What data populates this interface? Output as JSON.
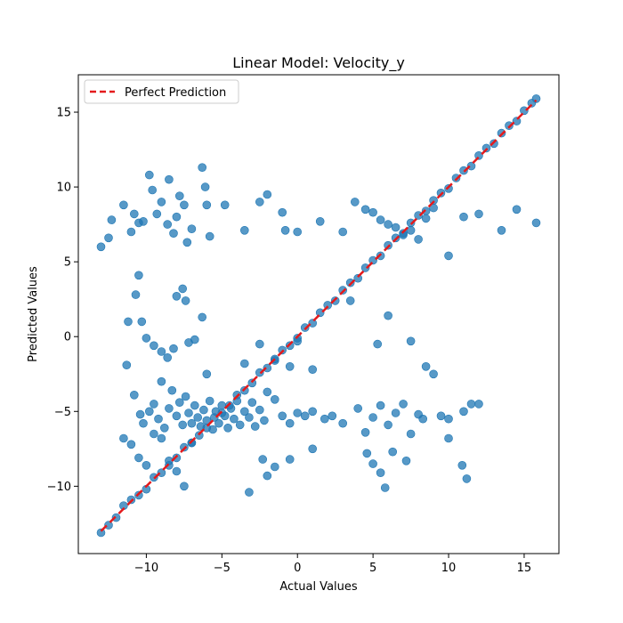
{
  "chart_data": {
    "type": "scatter",
    "title": "Linear Model: Velocity_y",
    "xlabel": "Actual Values",
    "ylabel": "Predicted Values",
    "xlim": [
      -14.5,
      17.3
    ],
    "ylim": [
      -14.5,
      17.5
    ],
    "xticks": [
      -10,
      -5,
      0,
      5,
      10,
      15
    ],
    "yticks": [
      -10,
      -5,
      0,
      5,
      10,
      15
    ],
    "xtick_labels": [
      "−10",
      "−5",
      "0",
      "5",
      "10",
      "15"
    ],
    "ytick_labels": [
      "−10",
      "−5",
      "0",
      "5",
      "10",
      "15"
    ],
    "grid": false,
    "legend": {
      "location": "upper-left",
      "entries": [
        "Perfect Prediction"
      ]
    },
    "colors": {
      "points": "#1f77b4",
      "reference_line": "#e41a1c"
    },
    "reference_line": {
      "name": "Perfect Prediction",
      "x": [
        -13,
        15.8
      ],
      "y": [
        -13,
        15.8
      ],
      "style": "dashed"
    },
    "series": [
      {
        "type": "scatter",
        "points": [
          [
            -13.0,
            -13.1
          ],
          [
            -12.5,
            -12.6
          ],
          [
            -12.0,
            -12.1
          ],
          [
            -11.5,
            -11.3
          ],
          [
            -11.0,
            -10.9
          ],
          [
            -10.5,
            -10.6
          ],
          [
            -10.0,
            -10.2
          ],
          [
            -9.5,
            -9.4
          ],
          [
            -9.0,
            -9.1
          ],
          [
            -8.5,
            -8.6
          ],
          [
            -8.0,
            -8.1
          ],
          [
            -7.5,
            -7.4
          ],
          [
            -7.0,
            -7.1
          ],
          [
            -6.5,
            -6.6
          ],
          [
            -6.0,
            -6.1
          ],
          [
            -5.5,
            -5.4
          ],
          [
            -5.0,
            -5.1
          ],
          [
            -4.5,
            -4.6
          ],
          [
            -4.0,
            -3.9
          ],
          [
            -3.5,
            -3.6
          ],
          [
            -3.0,
            -3.1
          ],
          [
            -2.5,
            -2.4
          ],
          [
            -2.0,
            -2.1
          ],
          [
            -1.5,
            -1.6
          ],
          [
            -1.0,
            -0.9
          ],
          [
            -0.5,
            -0.6
          ],
          [
            0.0,
            -0.1
          ],
          [
            0.5,
            0.6
          ],
          [
            1.0,
            0.9
          ],
          [
            1.5,
            1.6
          ],
          [
            2.0,
            2.1
          ],
          [
            2.5,
            2.4
          ],
          [
            3.0,
            3.1
          ],
          [
            3.5,
            3.6
          ],
          [
            4.0,
            3.9
          ],
          [
            4.5,
            4.6
          ],
          [
            5.0,
            5.1
          ],
          [
            5.5,
            5.4
          ],
          [
            6.0,
            6.1
          ],
          [
            6.5,
            6.6
          ],
          [
            7.0,
            6.9
          ],
          [
            7.5,
            7.6
          ],
          [
            8.0,
            8.1
          ],
          [
            8.5,
            8.4
          ],
          [
            9.0,
            9.1
          ],
          [
            9.5,
            9.6
          ],
          [
            10.0,
            9.9
          ],
          [
            10.5,
            10.6
          ],
          [
            11.0,
            11.1
          ],
          [
            11.5,
            11.4
          ],
          [
            12.0,
            12.1
          ],
          [
            12.5,
            12.6
          ],
          [
            13.0,
            12.9
          ],
          [
            13.5,
            13.6
          ],
          [
            14.0,
            14.1
          ],
          [
            14.5,
            14.4
          ],
          [
            15.0,
            15.1
          ],
          [
            15.5,
            15.6
          ],
          [
            15.8,
            15.9
          ],
          [
            -13.0,
            6.0
          ],
          [
            -12.5,
            6.6
          ],
          [
            -12.3,
            7.8
          ],
          [
            -11.5,
            8.8
          ],
          [
            -11.0,
            7.0
          ],
          [
            -10.8,
            8.2
          ],
          [
            -10.5,
            7.6
          ],
          [
            -10.2,
            7.7
          ],
          [
            -9.8,
            10.8
          ],
          [
            -9.6,
            9.8
          ],
          [
            -9.3,
            8.2
          ],
          [
            -9.0,
            9.0
          ],
          [
            -8.6,
            7.5
          ],
          [
            -8.5,
            10.5
          ],
          [
            -8.2,
            6.9
          ],
          [
            -8.0,
            8.0
          ],
          [
            -7.8,
            9.4
          ],
          [
            -7.5,
            8.8
          ],
          [
            -7.3,
            6.3
          ],
          [
            -7.0,
            7.2
          ],
          [
            -6.3,
            11.3
          ],
          [
            -6.1,
            10.0
          ],
          [
            -6.0,
            8.8
          ],
          [
            -5.8,
            6.7
          ],
          [
            -4.8,
            8.8
          ],
          [
            -3.5,
            7.1
          ],
          [
            -2.5,
            9.0
          ],
          [
            -2.0,
            9.5
          ],
          [
            -1.0,
            8.3
          ],
          [
            -0.8,
            7.1
          ],
          [
            0.0,
            7.0
          ],
          [
            1.5,
            7.7
          ],
          [
            3.0,
            7.0
          ],
          [
            3.8,
            9.0
          ],
          [
            4.5,
            8.5
          ],
          [
            5.0,
            8.3
          ],
          [
            5.5,
            7.8
          ],
          [
            6.0,
            7.5
          ],
          [
            6.5,
            7.3
          ],
          [
            7.0,
            6.8
          ],
          [
            7.5,
            7.1
          ],
          [
            8.0,
            6.5
          ],
          [
            8.5,
            7.9
          ],
          [
            9.0,
            8.6
          ],
          [
            10.0,
            5.4
          ],
          [
            11.0,
            8.0
          ],
          [
            12.0,
            8.2
          ],
          [
            13.5,
            7.1
          ],
          [
            14.5,
            8.5
          ],
          [
            15.8,
            7.6
          ],
          [
            -10.5,
            4.1
          ],
          [
            -10.7,
            2.8
          ],
          [
            -11.2,
            1.0
          ],
          [
            -10.3,
            1.0
          ],
          [
            -10.0,
            -0.1
          ],
          [
            -9.5,
            -0.6
          ],
          [
            -9.0,
            -1.0
          ],
          [
            -8.6,
            -1.4
          ],
          [
            -8.2,
            -0.8
          ],
          [
            -8.0,
            2.7
          ],
          [
            -7.6,
            3.2
          ],
          [
            -7.4,
            2.4
          ],
          [
            -7.2,
            -0.4
          ],
          [
            -6.8,
            -0.2
          ],
          [
            -6.3,
            1.3
          ],
          [
            -6.0,
            -2.5
          ],
          [
            -3.5,
            -1.8
          ],
          [
            -2.5,
            -0.5
          ],
          [
            -1.5,
            -1.5
          ],
          [
            -0.5,
            -2.0
          ],
          [
            0.0,
            -0.3
          ],
          [
            1.0,
            -2.2
          ],
          [
            3.5,
            2.4
          ],
          [
            5.3,
            -0.5
          ],
          [
            6.0,
            1.4
          ],
          [
            7.5,
            -0.3
          ],
          [
            8.5,
            -2.0
          ],
          [
            9.0,
            -2.5
          ],
          [
            -11.3,
            -1.9
          ],
          [
            -10.8,
            -3.9
          ],
          [
            -10.4,
            -5.2
          ],
          [
            -10.2,
            -5.8
          ],
          [
            -9.8,
            -5.0
          ],
          [
            -9.5,
            -4.5
          ],
          [
            -9.2,
            -5.5
          ],
          [
            -9.0,
            -3.0
          ],
          [
            -8.8,
            -6.1
          ],
          [
            -8.5,
            -4.8
          ],
          [
            -8.3,
            -3.6
          ],
          [
            -8.0,
            -5.3
          ],
          [
            -7.8,
            -4.4
          ],
          [
            -7.6,
            -5.9
          ],
          [
            -7.4,
            -4.0
          ],
          [
            -7.2,
            -5.1
          ],
          [
            -7.0,
            -5.8
          ],
          [
            -6.8,
            -4.6
          ],
          [
            -6.6,
            -5.4
          ],
          [
            -6.4,
            -6.0
          ],
          [
            -6.2,
            -4.9
          ],
          [
            -6.0,
            -5.6
          ],
          [
            -5.8,
            -4.3
          ],
          [
            -5.6,
            -6.2
          ],
          [
            -5.4,
            -5.0
          ],
          [
            -5.2,
            -5.8
          ],
          [
            -5.0,
            -4.6
          ],
          [
            -4.8,
            -5.3
          ],
          [
            -4.6,
            -6.1
          ],
          [
            -4.4,
            -4.8
          ],
          [
            -4.2,
            -5.5
          ],
          [
            -4.0,
            -4.3
          ],
          [
            -3.8,
            -5.9
          ],
          [
            -3.5,
            -5.0
          ],
          [
            -3.2,
            -5.4
          ],
          [
            -3.0,
            -4.4
          ],
          [
            -2.8,
            -6.0
          ],
          [
            -2.5,
            -4.9
          ],
          [
            -2.2,
            -5.6
          ],
          [
            -2.0,
            -3.7
          ],
          [
            -1.5,
            -4.2
          ],
          [
            -1.0,
            -5.3
          ],
          [
            -0.5,
            -5.8
          ],
          [
            0.0,
            -5.1
          ],
          [
            0.5,
            -5.3
          ],
          [
            1.0,
            -5.0
          ],
          [
            1.8,
            -5.5
          ],
          [
            2.3,
            -5.3
          ],
          [
            3.0,
            -5.8
          ],
          [
            4.0,
            -4.8
          ],
          [
            4.5,
            -6.4
          ],
          [
            5.0,
            -5.4
          ],
          [
            5.5,
            -4.6
          ],
          [
            6.0,
            -5.9
          ],
          [
            6.5,
            -5.1
          ],
          [
            7.0,
            -4.5
          ],
          [
            7.5,
            -6.5
          ],
          [
            8.0,
            -5.2
          ],
          [
            9.5,
            -5.3
          ],
          [
            10.0,
            -5.5
          ],
          [
            11.0,
            -5.0
          ],
          [
            11.5,
            -4.5
          ],
          [
            12.0,
            -4.5
          ],
          [
            -11.5,
            -6.8
          ],
          [
            -11.0,
            -7.2
          ],
          [
            -10.5,
            -8.1
          ],
          [
            -10.0,
            -8.6
          ],
          [
            -9.5,
            -6.5
          ],
          [
            -9.0,
            -6.8
          ],
          [
            -8.5,
            -8.3
          ],
          [
            -8.0,
            -9.0
          ],
          [
            -7.5,
            -10.0
          ],
          [
            -7.0,
            -7.1
          ],
          [
            -3.2,
            -10.4
          ],
          [
            -2.3,
            -8.2
          ],
          [
            -2.0,
            -9.3
          ],
          [
            -1.5,
            -8.7
          ],
          [
            -0.5,
            -8.2
          ],
          [
            1.0,
            -7.5
          ],
          [
            4.6,
            -7.8
          ],
          [
            5.0,
            -8.5
          ],
          [
            5.5,
            -9.1
          ],
          [
            5.8,
            -10.1
          ],
          [
            6.3,
            -7.7
          ],
          [
            7.2,
            -8.3
          ],
          [
            10.9,
            -8.6
          ],
          [
            11.2,
            -9.5
          ],
          [
            10.0,
            -6.8
          ],
          [
            8.3,
            -5.5
          ]
        ]
      }
    ]
  }
}
